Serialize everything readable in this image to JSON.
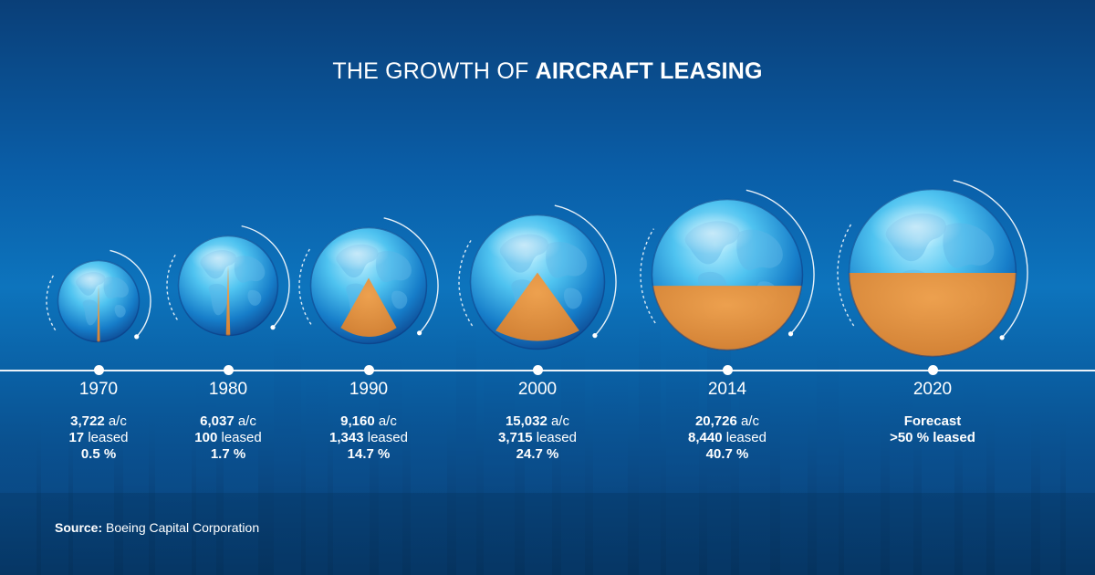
{
  "title": {
    "prefix": "THE GROWTH OF ",
    "highlight": "AIRCRAFT LEASING"
  },
  "chart_data": {
    "type": "bubble",
    "title": "THE GROWTH OF AIRCRAFT LEASING",
    "xlabel": "",
    "ylabel": "",
    "points": [
      {
        "year": "1970",
        "aircraft": "3,722",
        "aircraft_unit": " a/c",
        "leased": "17",
        "leased_unit": " leased",
        "percent_label": "0.5 %",
        "share_percent": 0.5
      },
      {
        "year": "1980",
        "aircraft": "6,037",
        "aircraft_unit": " a/c",
        "leased": "100",
        "leased_unit": " leased",
        "percent_label": "1.7 %",
        "share_percent": 1.7
      },
      {
        "year": "1990",
        "aircraft": "9,160",
        "aircraft_unit": " a/c",
        "leased": "1,343",
        "leased_unit": " leased",
        "percent_label": "14.7 %",
        "share_percent": 14.7
      },
      {
        "year": "2000",
        "aircraft": "15,032",
        "aircraft_unit": " a/c",
        "leased": "3,715",
        "leased_unit": " leased",
        "percent_label": "24.7 %",
        "share_percent": 24.7
      },
      {
        "year": "2014",
        "aircraft": "20,726",
        "aircraft_unit": " a/c",
        "leased": "8,440",
        "leased_unit": " leased",
        "percent_label": "40.7 %",
        "share_percent": 40.7
      },
      {
        "year": "2020",
        "forecast_label": "Forecast",
        "forecast_value": ">50 % leased",
        "share_percent": 50
      }
    ]
  },
  "source": {
    "label": "Source:",
    "text": " Boeing Capital Corporation"
  },
  "colors": {
    "background": "#0a5ea8",
    "leased_fill": "#e08a37",
    "globe_light": "#7fd6f6",
    "globe_dark": "#0b3d86",
    "text": "#ffffff"
  }
}
